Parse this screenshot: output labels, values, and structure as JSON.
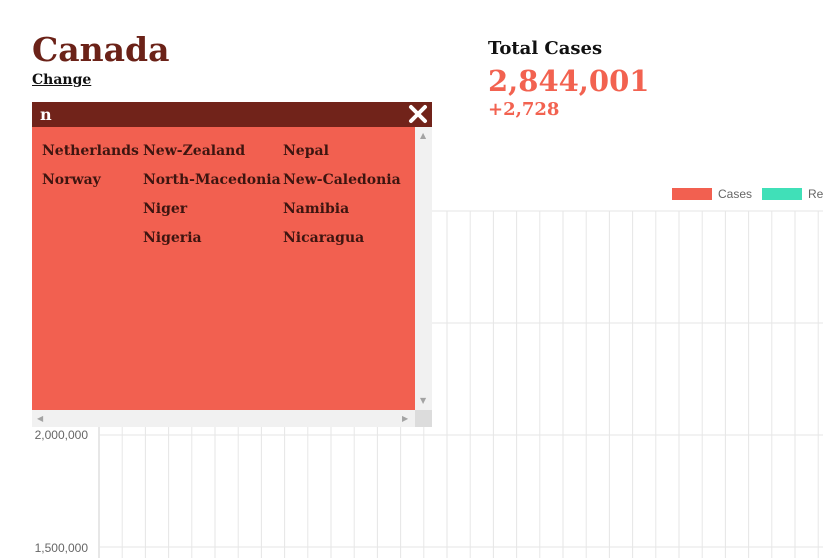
{
  "header": {
    "country": "Canada",
    "change_link": "Change"
  },
  "stats": {
    "label": "Total Cases",
    "total": "2,844,001",
    "delta": "+2,728"
  },
  "search": {
    "query": "n",
    "close_icon": "close-icon"
  },
  "results": {
    "columns": [
      [
        "Netherlands",
        "Norway"
      ],
      [
        "New-Zealand",
        "North-Macedonia",
        "Niger",
        "Nigeria"
      ],
      [
        "Nepal",
        "New-Caledonia",
        "Namibia",
        "Nicaragua"
      ]
    ]
  },
  "chart_data": {
    "type": "line",
    "legend": [
      {
        "name": "Cases",
        "color": "#f26050"
      },
      {
        "name": "Re",
        "color": "#40e0b8"
      }
    ],
    "y_ticks": [
      "2,000,000",
      "1,500,000"
    ],
    "grid": true,
    "legend_position": "top-right"
  },
  "colors": {
    "brand_dark": "#71231a",
    "accent": "#f26050",
    "title": "#6b2218"
  }
}
